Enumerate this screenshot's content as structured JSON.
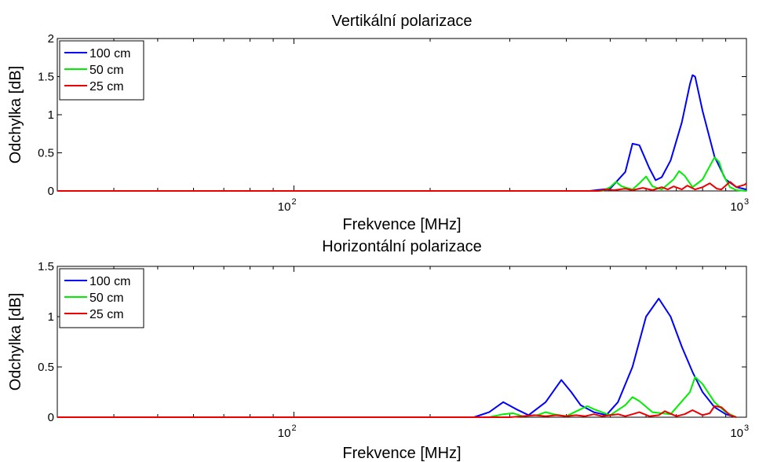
{
  "chart_data": [
    {
      "type": "line",
      "title": "Vertikální polarizace",
      "xlabel": "Frekvence [MHz]",
      "ylabel": "Odchylka [dB]",
      "xscale": "log",
      "xlim": [
        30,
        1000
      ],
      "ylim": [
        0,
        2
      ],
      "yticks": [
        "0",
        "0.5",
        "1",
        "1.5",
        "2"
      ],
      "xticks": [
        {
          "base": "10",
          "exp": "2"
        },
        {
          "base": "10",
          "exp": "3"
        }
      ],
      "grid": false,
      "legend": "top-left",
      "series": [
        {
          "name": "100 cm",
          "color": "#0000ff",
          "x": [
            30,
            450,
            500,
            540,
            560,
            580,
            610,
            630,
            650,
            680,
            720,
            750,
            760,
            770,
            800,
            850,
            900,
            950,
            1000
          ],
          "y": [
            0,
            0,
            0.03,
            0.25,
            0.62,
            0.6,
            0.3,
            0.14,
            0.18,
            0.4,
            0.9,
            1.4,
            1.52,
            1.5,
            1.05,
            0.45,
            0.15,
            0.05,
            0.02
          ]
        },
        {
          "name": "50 cm",
          "color": "#00ee00",
          "x": [
            30,
            480,
            500,
            515,
            530,
            560,
            580,
            600,
            620,
            650,
            690,
            710,
            730,
            760,
            800,
            850,
            870,
            890,
            920,
            950,
            1000
          ],
          "y": [
            0,
            0,
            0.05,
            0.12,
            0.06,
            0.02,
            0.1,
            0.19,
            0.06,
            0.02,
            0.15,
            0.26,
            0.2,
            0.05,
            0.15,
            0.44,
            0.38,
            0.2,
            0.05,
            0.01,
            0
          ]
        },
        {
          "name": "25 cm",
          "color": "#ee0000",
          "x": [
            30,
            470,
            490,
            510,
            540,
            560,
            590,
            620,
            650,
            670,
            690,
            720,
            740,
            770,
            800,
            830,
            860,
            880,
            920,
            950,
            990,
            1000
          ],
          "y": [
            0,
            0,
            0.02,
            0.01,
            0.03,
            0.01,
            0.04,
            0.01,
            0.05,
            0.02,
            0.06,
            0.02,
            0.07,
            0.02,
            0.05,
            0.1,
            0.03,
            0.02,
            0.12,
            0.05,
            0.08,
            0.1
          ]
        }
      ]
    },
    {
      "type": "line",
      "title": "Horizontální polarizace",
      "xlabel": "Frekvence [MHz]",
      "ylabel": "Odchylka [dB]",
      "xscale": "log",
      "xlim": [
        30,
        1000
      ],
      "ylim": [
        0,
        1.5
      ],
      "yticks": [
        "0",
        "0.5",
        "1",
        "1.5"
      ],
      "xticks": [
        {
          "base": "10",
          "exp": "2"
        },
        {
          "base": "10",
          "exp": "3"
        }
      ],
      "grid": false,
      "legend": "top-left",
      "series": [
        {
          "name": "100 cm",
          "color": "#0000ff",
          "x": [
            30,
            250,
            270,
            290,
            310,
            330,
            360,
            390,
            410,
            430,
            460,
            490,
            520,
            560,
            600,
            640,
            680,
            720,
            760,
            800,
            850,
            900,
            950
          ],
          "y": [
            0,
            0,
            0.05,
            0.15,
            0.08,
            0.02,
            0.15,
            0.37,
            0.25,
            0.12,
            0.05,
            0.02,
            0.15,
            0.5,
            1.0,
            1.18,
            1.0,
            0.7,
            0.45,
            0.25,
            0.1,
            0.03,
            0
          ]
        },
        {
          "name": "50 cm",
          "color": "#00ee00",
          "x": [
            30,
            270,
            290,
            305,
            320,
            345,
            360,
            375,
            400,
            430,
            445,
            460,
            500,
            540,
            560,
            580,
            620,
            680,
            750,
            770,
            800,
            850,
            900,
            950
          ],
          "y": [
            0,
            0,
            0.03,
            0.04,
            0.01,
            0.02,
            0.05,
            0.03,
            0.01,
            0.08,
            0.11,
            0.08,
            0.02,
            0.12,
            0.2,
            0.16,
            0.05,
            0.03,
            0.25,
            0.4,
            0.33,
            0.15,
            0.05,
            0
          ]
        },
        {
          "name": "25 cm",
          "color": "#ee0000",
          "x": [
            30,
            300,
            320,
            340,
            360,
            380,
            400,
            420,
            440,
            460,
            480,
            500,
            520,
            540,
            560,
            580,
            610,
            640,
            660,
            700,
            730,
            760,
            800,
            830,
            850,
            880,
            920,
            950
          ],
          "y": [
            0,
            0,
            0.01,
            0.02,
            0.01,
            0.02,
            0.01,
            0.02,
            0.01,
            0.03,
            0.01,
            0.02,
            0.03,
            0.01,
            0.03,
            0.05,
            0.01,
            0.02,
            0.06,
            0.01,
            0.03,
            0.07,
            0.02,
            0.04,
            0.11,
            0.1,
            0.02,
            0
          ]
        }
      ]
    }
  ]
}
